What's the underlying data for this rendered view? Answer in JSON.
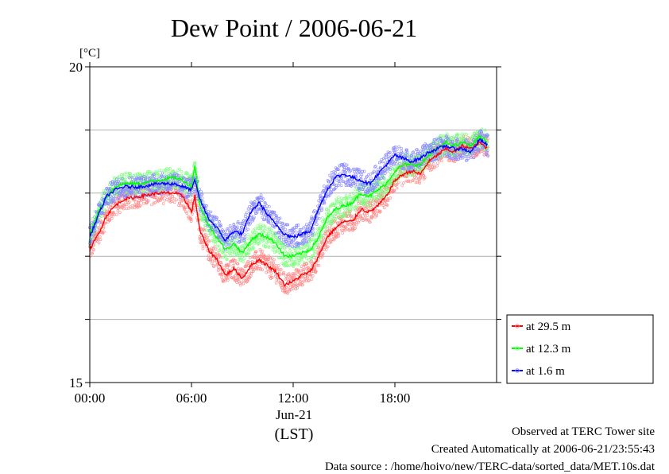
{
  "chart_data": {
    "type": "line",
    "title": "Dew Point / 2006-06-21",
    "yunit": "[°C]",
    "ylim": [
      15,
      20
    ],
    "yticks": [
      {
        "value": 15,
        "label": "15"
      },
      {
        "value": 16,
        "label": ""
      },
      {
        "value": 17,
        "label": ""
      },
      {
        "value": 18,
        "label": ""
      },
      {
        "value": 19,
        "label": ""
      },
      {
        "value": 20,
        "label": "20"
      }
    ],
    "xlim": [
      0,
      24
    ],
    "xticks": [
      {
        "value": 0,
        "label": "00:00"
      },
      {
        "value": 6,
        "label": "06:00"
      },
      {
        "value": 12,
        "label": "12:00"
      },
      {
        "value": 18,
        "label": "18:00"
      }
    ],
    "xdate": "Jun-21",
    "xlabel": "(LST)",
    "grid": "horizontal",
    "legend_position": "right-bottom",
    "series": [
      {
        "name": "at 29.5 m",
        "color": "#ff0000",
        "x": [
          0,
          0.5,
          1,
          1.5,
          2,
          3,
          4,
          5,
          5.5,
          6,
          6.2,
          6.5,
          7,
          7.5,
          8,
          8.5,
          9,
          9.5,
          10,
          10.5,
          11,
          11.5,
          12,
          12.5,
          13,
          13.5,
          14,
          14.5,
          15,
          15.5,
          16,
          16.5,
          17,
          17.5,
          18,
          18.5,
          19,
          19.5,
          20,
          20.5,
          21,
          21.5,
          22,
          22.5,
          23,
          23.5
        ],
        "y": [
          17.1,
          17.35,
          17.65,
          17.8,
          17.9,
          17.95,
          18.0,
          18.0,
          17.95,
          17.7,
          17.95,
          17.4,
          17.1,
          16.95,
          16.7,
          16.8,
          16.65,
          16.85,
          16.95,
          16.85,
          16.75,
          16.55,
          16.6,
          16.7,
          16.75,
          17.0,
          17.3,
          17.45,
          17.55,
          17.55,
          17.75,
          17.7,
          17.8,
          17.95,
          18.2,
          18.3,
          18.35,
          18.3,
          18.5,
          18.6,
          18.7,
          18.65,
          18.75,
          18.7,
          18.8,
          18.7
        ]
      },
      {
        "name": "at 12.3 m",
        "color": "#00ff00",
        "x": [
          0,
          0.5,
          1,
          1.5,
          2,
          3,
          4,
          5,
          5.5,
          6,
          6.2,
          6.5,
          7,
          7.5,
          8,
          8.5,
          9,
          9.5,
          10,
          10.5,
          11,
          11.5,
          12,
          12.5,
          13,
          13.5,
          14,
          14.5,
          15,
          15.5,
          16,
          16.5,
          17,
          17.5,
          18,
          18.5,
          19,
          19.5,
          20,
          20.5,
          21,
          21.5,
          22,
          22.5,
          23,
          23.5
        ],
        "y": [
          17.35,
          17.7,
          17.95,
          18.1,
          18.15,
          18.15,
          18.2,
          18.25,
          18.2,
          18.1,
          18.45,
          17.8,
          17.5,
          17.3,
          17.1,
          17.2,
          17.05,
          17.25,
          17.35,
          17.3,
          17.2,
          17.0,
          17.0,
          17.05,
          17.1,
          17.3,
          17.6,
          17.75,
          17.8,
          17.85,
          18.0,
          17.95,
          18.05,
          18.15,
          18.35,
          18.45,
          18.45,
          18.45,
          18.6,
          18.7,
          18.8,
          18.75,
          18.8,
          18.75,
          18.9,
          18.8
        ]
      },
      {
        "name": "at 1.6 m",
        "color": "#0000ff",
        "x": [
          0,
          0.5,
          1,
          1.5,
          2,
          3,
          4,
          5,
          5.5,
          6,
          6.2,
          6.5,
          7,
          7.5,
          8,
          8.5,
          9,
          9.5,
          10,
          10.5,
          11,
          11.5,
          12,
          12.5,
          13,
          13.5,
          14,
          14.5,
          15,
          15.5,
          16,
          16.5,
          17,
          17.5,
          18,
          18.5,
          19,
          19.5,
          20,
          20.5,
          21,
          21.5,
          22,
          22.5,
          23,
          23.5
        ],
        "y": [
          17.3,
          17.65,
          17.95,
          18.05,
          18.1,
          18.1,
          18.15,
          18.15,
          18.1,
          18.05,
          18.2,
          17.9,
          17.6,
          17.45,
          17.25,
          17.4,
          17.35,
          17.7,
          17.85,
          17.65,
          17.5,
          17.35,
          17.3,
          17.35,
          17.4,
          17.75,
          18.05,
          18.25,
          18.3,
          18.25,
          18.2,
          18.15,
          18.3,
          18.45,
          18.6,
          18.55,
          18.5,
          18.55,
          18.65,
          18.7,
          18.75,
          18.7,
          18.7,
          18.65,
          18.85,
          18.75
        ]
      }
    ]
  },
  "footer": {
    "site": "Observed at TERC Tower site",
    "created": "Created Automatically at 2006-06-21/23:55:43",
    "source": "Data source : /home/hoivo/new/TERC-data/sorted_data/MET.10s.dat"
  }
}
